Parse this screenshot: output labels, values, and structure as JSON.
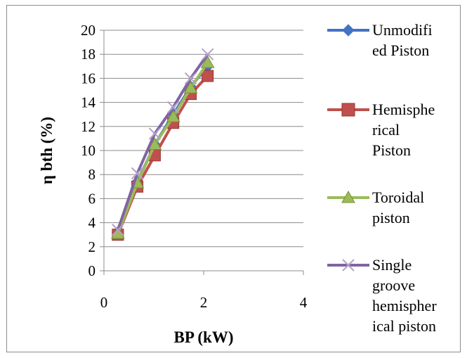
{
  "chart_data": {
    "type": "line",
    "title": "",
    "xlabel": "BP (kW)",
    "ylabel": "η bth (%)",
    "xlim": [
      0,
      4
    ],
    "ylim": [
      0,
      20
    ],
    "xticks": [
      0,
      2,
      4
    ],
    "yticks": [
      0,
      2,
      4,
      6,
      8,
      10,
      12,
      14,
      16,
      18,
      20
    ],
    "grid": "horizontal",
    "legend": "right",
    "series": [
      {
        "name": "Unmodified Piston",
        "legend_lines": [
          "Unmodifi",
          "ed Piston"
        ],
        "color": "#4472c4",
        "marker": "diamond",
        "x": [
          0.28,
          0.67,
          1.02,
          1.39,
          1.74,
          2.08
        ],
        "y": [
          3.2,
          7.4,
          10.5,
          13.0,
          15.3,
          17.0
        ]
      },
      {
        "name": "Hemispherical Piston",
        "legend_lines": [
          "Hemisphe",
          "rical",
          "Piston"
        ],
        "color": "#c0504d",
        "marker": "square",
        "x": [
          0.28,
          0.67,
          1.02,
          1.39,
          1.74,
          2.08
        ],
        "y": [
          3.0,
          7.0,
          9.6,
          12.3,
          14.7,
          16.2
        ]
      },
      {
        "name": "Toroidal piston",
        "legend_lines": [
          "Toroidal",
          "piston"
        ],
        "color": "#9bbb59",
        "marker": "triangle",
        "x": [
          0.28,
          0.67,
          1.02,
          1.39,
          1.74,
          2.08
        ],
        "y": [
          3.1,
          7.3,
          10.5,
          12.8,
          15.2,
          17.3
        ]
      },
      {
        "name": "Single groove hemispherical piston",
        "legend_lines": [
          "Single",
          "groove",
          "hemispher",
          "ical piston"
        ],
        "color": "#8064a2",
        "marker": "x",
        "x": [
          0.28,
          0.67,
          1.02,
          1.39,
          1.74,
          2.08
        ],
        "y": [
          3.4,
          8.1,
          11.4,
          13.6,
          16.0,
          18.0
        ]
      }
    ]
  }
}
